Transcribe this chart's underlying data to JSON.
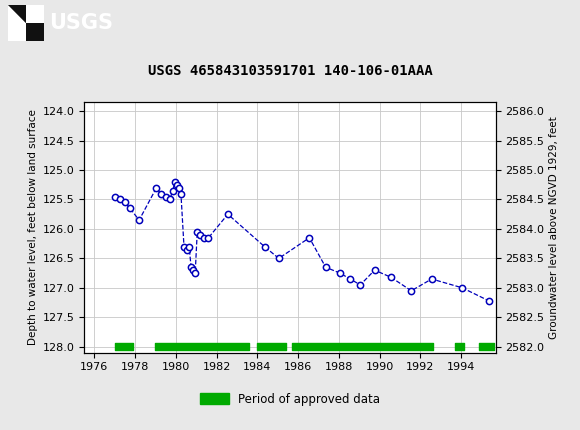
{
  "title": "USGS 465843103591701 140-106-01AAA",
  "ylabel_left": "Depth to water level, feet below land surface",
  "ylabel_right": "Groundwater level above NGVD 1929, feet",
  "xlim": [
    1975.5,
    1995.7
  ],
  "ylim_left": [
    128.1,
    123.85
  ],
  "ylim_right": [
    2581.9,
    2586.15
  ],
  "yticks_left": [
    124.0,
    124.5,
    125.0,
    125.5,
    126.0,
    126.5,
    127.0,
    127.5,
    128.0
  ],
  "yticks_right": [
    2582.0,
    2582.5,
    2583.0,
    2583.5,
    2584.0,
    2584.5,
    2585.0,
    2585.5,
    2586.0
  ],
  "xticks": [
    1976,
    1978,
    1980,
    1982,
    1984,
    1986,
    1988,
    1990,
    1992,
    1994
  ],
  "data_x": [
    1977.0,
    1977.25,
    1977.5,
    1977.75,
    1978.2,
    1979.05,
    1979.25,
    1979.5,
    1979.7,
    1979.85,
    1979.95,
    1980.05,
    1980.15,
    1980.25,
    1980.4,
    1980.55,
    1980.65,
    1980.75,
    1980.85,
    1980.95,
    1981.05,
    1981.2,
    1981.4,
    1981.6,
    1982.55,
    1984.35,
    1985.05,
    1986.55,
    1987.35,
    1988.05,
    1988.55,
    1989.05,
    1989.75,
    1990.55,
    1991.55,
    1992.55,
    1994.05,
    1995.35
  ],
  "data_y": [
    125.45,
    125.5,
    125.55,
    125.65,
    125.85,
    125.3,
    125.4,
    125.45,
    125.5,
    125.35,
    125.2,
    125.25,
    125.3,
    125.4,
    126.3,
    126.35,
    126.3,
    126.65,
    126.7,
    126.75,
    126.05,
    126.1,
    126.15,
    126.15,
    125.75,
    126.3,
    126.5,
    126.15,
    126.65,
    126.75,
    126.85,
    126.95,
    126.7,
    126.82,
    127.05,
    126.85,
    127.0,
    127.22
  ],
  "line_color": "#0000bb",
  "marker_color": "#0000bb",
  "marker_face": "white",
  "header_color": "#1f6b3a",
  "plot_bg": "#ffffff",
  "fig_bg": "#e8e8e8",
  "grid_color": "#c8c8c8",
  "approved_periods": [
    [
      1977.0,
      1977.9
    ],
    [
      1979.0,
      1983.6
    ],
    [
      1984.0,
      1985.4
    ],
    [
      1985.7,
      1992.6
    ],
    [
      1993.7,
      1994.15
    ],
    [
      1994.85,
      1995.6
    ]
  ],
  "legend_label": "Period of approved data",
  "legend_color": "#00aa00",
  "bar_y": 128.0,
  "bar_height": 0.12
}
